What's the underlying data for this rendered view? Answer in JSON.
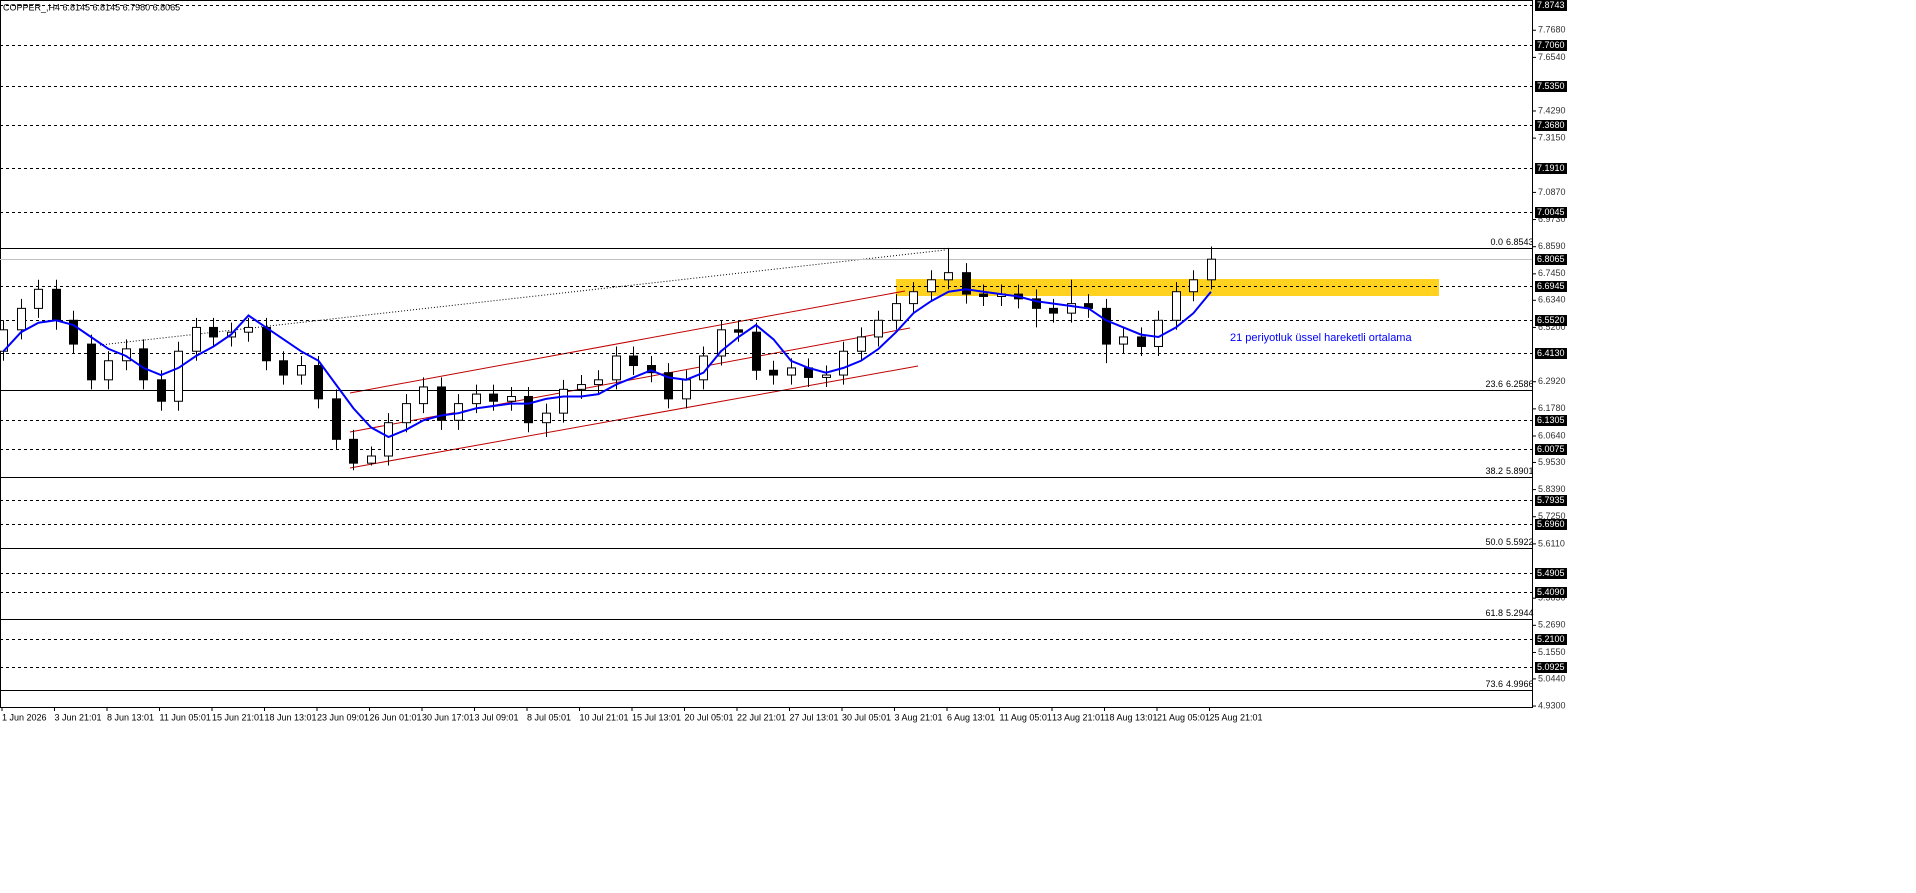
{
  "chart_data": {
    "type": "candlestick",
    "title": "COPPER_,H4  6.8145 6.8145 6.7980 6.8065",
    "annotation": "21 periyotluk üssel hareketli ortalama",
    "categories": [
      "1 Jun 2026",
      "3 Jun 21:01",
      "8 Jun 13:01",
      "11 Jun 05:01",
      "15 Jun 21:01",
      "18 Jun 13:01",
      "23 Jun 09:01",
      "26 Jun 01:01",
      "30 Jun 17:01",
      "3 Jul 09:01",
      "8 Jul 05:01",
      "10 Jul 21:01",
      "15 Jul 13:01",
      "20 Jul 05:01",
      "22 Jul 21:01",
      "27 Jul 13:01",
      "30 Jul 05:01",
      "3 Aug 21:01",
      "6 Aug 13:01",
      "11 Aug 05:01",
      "13 Aug 21:01",
      "18 Aug 13:01",
      "21 Aug 05:01",
      "25 Aug 21:01"
    ],
    "open": [
      6.42,
      6.51,
      6.6,
      6.68,
      6.55,
      6.45,
      6.3,
      6.38,
      6.43,
      6.3,
      6.21,
      6.42,
      6.52,
      6.48,
      6.5,
      6.52,
      6.38,
      6.32,
      6.36,
      6.22,
      6.05,
      5.95,
      5.98,
      6.12,
      6.2,
      6.27,
      6.13,
      6.2,
      6.24,
      6.21,
      6.23,
      6.12,
      6.16,
      6.26,
      6.28,
      6.3,
      6.4,
      6.36,
      6.33,
      6.22,
      6.3,
      6.4,
      6.51,
      6.5,
      6.34,
      6.32,
      6.35,
      6.31,
      6.32,
      6.42,
      6.48,
      6.55,
      6.62,
      6.67,
      6.72,
      6.75,
      6.66,
      6.65,
      6.66,
      6.64,
      6.6,
      6.58,
      6.62,
      6.6,
      6.45,
      6.48,
      6.44,
      6.55,
      6.67,
      6.72
    ],
    "high": [
      6.55,
      6.64,
      6.72,
      6.72,
      6.59,
      6.49,
      6.42,
      6.47,
      6.47,
      6.34,
      6.46,
      6.56,
      6.56,
      6.54,
      6.56,
      6.56,
      6.42,
      6.4,
      6.4,
      6.26,
      6.09,
      6.02,
      6.16,
      6.24,
      6.31,
      6.31,
      6.24,
      6.28,
      6.28,
      6.27,
      6.27,
      6.2,
      6.3,
      6.32,
      6.34,
      6.44,
      6.44,
      6.4,
      6.37,
      6.34,
      6.44,
      6.55,
      6.55,
      6.54,
      6.38,
      6.39,
      6.39,
      6.36,
      6.46,
      6.52,
      6.59,
      6.66,
      6.71,
      6.76,
      6.8543,
      6.79,
      6.7,
      6.7,
      6.7,
      6.68,
      6.64,
      6.72,
      6.66,
      6.64,
      6.52,
      6.52,
      6.59,
      6.71,
      6.76,
      6.86
    ],
    "low": [
      6.38,
      6.47,
      6.56,
      6.51,
      6.41,
      6.26,
      6.26,
      6.34,
      6.26,
      6.17,
      6.17,
      6.38,
      6.44,
      6.44,
      6.46,
      6.34,
      6.28,
      6.28,
      6.18,
      6.01,
      5.92,
      5.94,
      5.94,
      6.08,
      6.16,
      6.09,
      6.09,
      6.16,
      6.17,
      6.17,
      6.08,
      6.06,
      6.12,
      6.22,
      6.24,
      6.26,
      6.32,
      6.29,
      6.18,
      6.18,
      6.26,
      6.36,
      6.46,
      6.3,
      6.28,
      6.28,
      6.27,
      6.27,
      6.28,
      6.38,
      6.44,
      6.51,
      6.58,
      6.63,
      6.68,
      6.62,
      6.61,
      6.61,
      6.6,
      6.52,
      6.54,
      6.54,
      6.56,
      6.37,
      6.41,
      6.4,
      6.4,
      6.51,
      6.63,
      6.68
    ],
    "close": [
      6.51,
      6.6,
      6.68,
      6.55,
      6.45,
      6.3,
      6.38,
      6.43,
      6.3,
      6.21,
      6.42,
      6.52,
      6.48,
      6.5,
      6.52,
      6.38,
      6.32,
      6.36,
      6.22,
      6.05,
      5.95,
      5.98,
      6.12,
      6.2,
      6.27,
      6.13,
      6.2,
      6.24,
      6.21,
      6.23,
      6.12,
      6.16,
      6.26,
      6.28,
      6.3,
      6.4,
      6.36,
      6.33,
      6.22,
      6.3,
      6.4,
      6.51,
      6.5,
      6.34,
      6.32,
      6.35,
      6.31,
      6.32,
      6.42,
      6.48,
      6.55,
      6.62,
      6.67,
      6.72,
      6.75,
      6.66,
      6.65,
      6.66,
      6.64,
      6.6,
      6.58,
      6.62,
      6.6,
      6.45,
      6.48,
      6.44,
      6.55,
      6.67,
      6.72,
      6.8065
    ],
    "ema_values": [
      6.42,
      6.5,
      6.54,
      6.55,
      6.53,
      6.48,
      6.43,
      6.4,
      6.35,
      6.32,
      6.35,
      6.4,
      6.44,
      6.49,
      6.57,
      6.52,
      6.47,
      6.42,
      6.38,
      6.28,
      6.18,
      6.1,
      6.06,
      6.09,
      6.13,
      6.15,
      6.16,
      6.18,
      6.19,
      6.2,
      6.2,
      6.22,
      6.23,
      6.23,
      6.24,
      6.28,
      6.31,
      6.34,
      6.31,
      6.3,
      6.33,
      6.42,
      6.48,
      6.53,
      6.47,
      6.38,
      6.35,
      6.33,
      6.35,
      6.38,
      6.43,
      6.5,
      6.58,
      6.63,
      6.67,
      6.68,
      6.67,
      6.66,
      6.65,
      6.63,
      6.62,
      6.61,
      6.6,
      6.55,
      6.52,
      6.49,
      6.48,
      6.52,
      6.58,
      6.67
    ],
    "ema_color": "#0000ff",
    "last_price": 6.8065,
    "ylim": [
      4.926,
      7.895
    ],
    "yticks": [
      {
        "value": 7.768,
        "label": "7.7680"
      },
      {
        "value": 7.654,
        "label": "7.6540"
      },
      {
        "value": 7.429,
        "label": "7.4290"
      },
      {
        "value": 7.315,
        "label": "7.3150"
      },
      {
        "value": 7.087,
        "label": "7.0870"
      },
      {
        "value": 6.973,
        "label": "6.9730"
      },
      {
        "value": 6.859,
        "label": "6.8590"
      },
      {
        "value": 6.745,
        "label": "6.7450"
      },
      {
        "value": 6.634,
        "label": "6.6340"
      },
      {
        "value": 6.52,
        "label": "6.5200"
      },
      {
        "value": 6.292,
        "label": "6.2920"
      },
      {
        "value": 6.178,
        "label": "6.1780"
      },
      {
        "value": 6.064,
        "label": "6.0640"
      },
      {
        "value": 5.953,
        "label": "5.9530"
      },
      {
        "value": 5.839,
        "label": "5.8390"
      },
      {
        "value": 5.725,
        "label": "5.7250"
      },
      {
        "value": 5.611,
        "label": "5.6110"
      },
      {
        "value": 5.383,
        "label": "5.3830"
      },
      {
        "value": 5.269,
        "label": "5.2690"
      },
      {
        "value": 5.155,
        "label": "5.1550"
      },
      {
        "value": 5.044,
        "label": "5.0440"
      },
      {
        "value": 4.93,
        "label": "4.9300"
      }
    ],
    "levels": [
      7.8743,
      {
        "value": 7.706,
        "label": "7.7060"
      },
      {
        "value": 7.535,
        "label": "7.5350"
      },
      {
        "value": 7.368,
        "label": "7.3680"
      },
      {
        "value": 7.191,
        "label": "7.1910"
      },
      7.0045,
      6.6945,
      {
        "value": 6.552,
        "label": "6.5520"
      },
      {
        "value": 6.413,
        "label": "6.4130"
      },
      6.1305,
      6.0075,
      5.7935,
      {
        "value": 5.696,
        "label": "5.6960"
      },
      5.4905,
      {
        "value": 5.409,
        "label": "5.4090"
      },
      {
        "value": 5.21,
        "label": "5.2100"
      },
      5.0925
    ],
    "fib_levels": [
      {
        "label": "0.0",
        "value": 6.8543
      },
      {
        "label": "23.6",
        "value": 6.2586
      },
      {
        "label": "38.2",
        "value": 5.8901
      },
      {
        "label": "50.0",
        "value": 5.5922
      },
      {
        "label": "61.8",
        "value": 5.2944
      },
      {
        "label": "73.6",
        "value": 4.9966
      }
    ]
  }
}
